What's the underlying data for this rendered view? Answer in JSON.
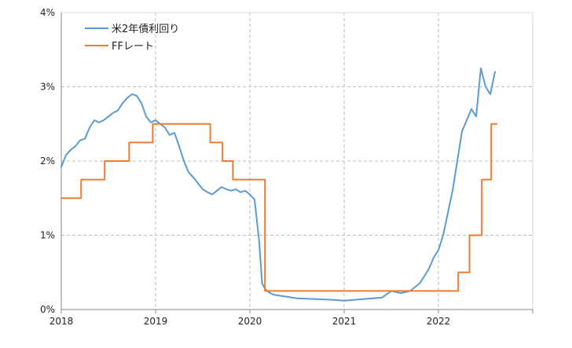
{
  "chart_data": {
    "type": "line",
    "title": "",
    "xlabel": "",
    "ylabel": "",
    "xlim": [
      2018.0,
      2023.0
    ],
    "ylim": [
      0,
      4
    ],
    "grid": true,
    "legend_position": "top-left",
    "x_ticks": [
      {
        "value": 2018,
        "label": "2018"
      },
      {
        "value": 2019,
        "label": "2019"
      },
      {
        "value": 2020,
        "label": "2020"
      },
      {
        "value": 2021,
        "label": "2021"
      },
      {
        "value": 2022,
        "label": "2022"
      }
    ],
    "y_ticks": [
      {
        "value": 0,
        "label": "0%"
      },
      {
        "value": 1,
        "label": "1%"
      },
      {
        "value": 2,
        "label": "2%"
      },
      {
        "value": 3,
        "label": "3%"
      },
      {
        "value": 4,
        "label": "4%"
      }
    ],
    "series": [
      {
        "name": "米2年債利回り",
        "color": "#5b9bd5",
        "x": [
          2018.0,
          2018.05,
          2018.1,
          2018.15,
          2018.2,
          2018.25,
          2018.3,
          2018.35,
          2018.4,
          2018.45,
          2018.5,
          2018.55,
          2018.6,
          2018.65,
          2018.7,
          2018.75,
          2018.8,
          2018.85,
          2018.9,
          2018.95,
          2019.0,
          2019.05,
          2019.1,
          2019.15,
          2019.2,
          2019.25,
          2019.3,
          2019.35,
          2019.4,
          2019.45,
          2019.5,
          2019.55,
          2019.6,
          2019.65,
          2019.7,
          2019.75,
          2019.8,
          2019.85,
          2019.9,
          2019.95,
          2020.0,
          2020.05,
          2020.1,
          2020.13,
          2020.16,
          2020.19,
          2020.22,
          2020.25,
          2020.35,
          2020.5,
          2020.7,
          2020.9,
          2021.0,
          2021.2,
          2021.4,
          2021.5,
          2021.6,
          2021.7,
          2021.8,
          2021.85,
          2021.9,
          2021.95,
          2022.0,
          2022.05,
          2022.1,
          2022.15,
          2022.2,
          2022.25,
          2022.3,
          2022.35,
          2022.4,
          2022.45,
          2022.5,
          2022.55,
          2022.6
        ],
        "values": [
          1.92,
          2.08,
          2.15,
          2.2,
          2.28,
          2.3,
          2.45,
          2.55,
          2.52,
          2.55,
          2.6,
          2.65,
          2.68,
          2.78,
          2.85,
          2.9,
          2.88,
          2.78,
          2.6,
          2.52,
          2.55,
          2.5,
          2.45,
          2.35,
          2.38,
          2.2,
          2.0,
          1.85,
          1.78,
          1.7,
          1.62,
          1.58,
          1.55,
          1.6,
          1.65,
          1.62,
          1.6,
          1.62,
          1.58,
          1.6,
          1.55,
          1.48,
          0.9,
          0.35,
          0.28,
          0.24,
          0.22,
          0.2,
          0.18,
          0.15,
          0.14,
          0.13,
          0.12,
          0.14,
          0.16,
          0.25,
          0.22,
          0.25,
          0.35,
          0.45,
          0.55,
          0.7,
          0.8,
          1.0,
          1.3,
          1.6,
          2.0,
          2.4,
          2.55,
          2.7,
          2.6,
          3.25,
          3.0,
          2.9,
          3.2
        ]
      },
      {
        "name": "FFレート",
        "color": "#ed7d31",
        "x": [
          2018.0,
          2018.21,
          2018.21,
          2018.46,
          2018.46,
          2018.72,
          2018.72,
          2018.97,
          2018.97,
          2019.58,
          2019.58,
          2019.71,
          2019.71,
          2019.82,
          2019.82,
          2020.16,
          2020.16,
          2022.21,
          2022.21,
          2022.33,
          2022.33,
          2022.46,
          2022.46,
          2022.56,
          2022.56,
          2022.62
        ],
        "values": [
          1.5,
          1.5,
          1.75,
          1.75,
          2.0,
          2.0,
          2.25,
          2.25,
          2.5,
          2.5,
          2.25,
          2.25,
          2.0,
          2.0,
          1.75,
          1.75,
          0.25,
          0.25,
          0.5,
          0.5,
          1.0,
          1.0,
          1.75,
          1.75,
          2.5,
          2.5
        ]
      }
    ]
  }
}
